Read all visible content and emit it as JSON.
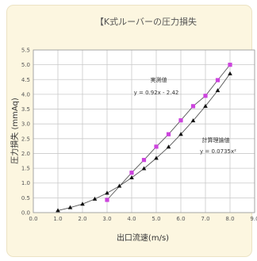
{
  "chart_data": {
    "type": "scatter",
    "title": "【K式ルーバーの圧力損失",
    "xlabel": "出口流速(m/s)",
    "ylabel": "圧力損失 (mmAq)",
    "xlim": [
      0.0,
      9.0
    ],
    "ylim": [
      0.0,
      5.5
    ],
    "x_ticks": [
      "0.0",
      "1.0",
      "2.0",
      "3.0",
      "4.0",
      "5.0",
      "6.0",
      "7.0",
      "8.0",
      "9.0"
    ],
    "y_ticks": [
      "0.0",
      "0.5",
      "1.0",
      "1.5",
      "2.0",
      "2.5",
      "3.0",
      "3.5",
      "4.0",
      "4.5",
      "5.0",
      "5.5"
    ],
    "grid": true,
    "series": [
      {
        "name": "実測値",
        "marker": "square",
        "color": "#cc44dd",
        "trendline": "y = 0.92x - 2.42",
        "points": [
          [
            3.0,
            0.43
          ],
          [
            4.0,
            1.35
          ],
          [
            4.5,
            1.78
          ],
          [
            5.0,
            2.23
          ],
          [
            5.5,
            2.65
          ],
          [
            6.0,
            3.12
          ],
          [
            6.5,
            3.6
          ],
          [
            7.0,
            3.95
          ],
          [
            7.5,
            4.48
          ],
          [
            8.0,
            5.0
          ]
        ]
      },
      {
        "name": "計算理論値",
        "marker": "triangle",
        "color": "#111111",
        "trendline": "y = 0.0735x²",
        "points": [
          [
            1.0,
            0.07
          ],
          [
            1.5,
            0.17
          ],
          [
            2.0,
            0.29
          ],
          [
            2.5,
            0.46
          ],
          [
            3.0,
            0.66
          ],
          [
            3.5,
            0.9
          ],
          [
            4.0,
            1.18
          ],
          [
            4.5,
            1.49
          ],
          [
            5.0,
            1.84
          ],
          [
            5.5,
            2.22
          ],
          [
            6.0,
            2.65
          ],
          [
            6.5,
            3.11
          ],
          [
            7.0,
            3.6
          ],
          [
            7.5,
            4.13
          ],
          [
            8.0,
            4.7
          ]
        ]
      }
    ],
    "annotations": [
      {
        "series": 0,
        "label": "実測値",
        "equation": "y = 0.92x - 2.42"
      },
      {
        "series": 1,
        "label": "計算理論値",
        "equation": "y = 0.0735x²"
      }
    ]
  }
}
